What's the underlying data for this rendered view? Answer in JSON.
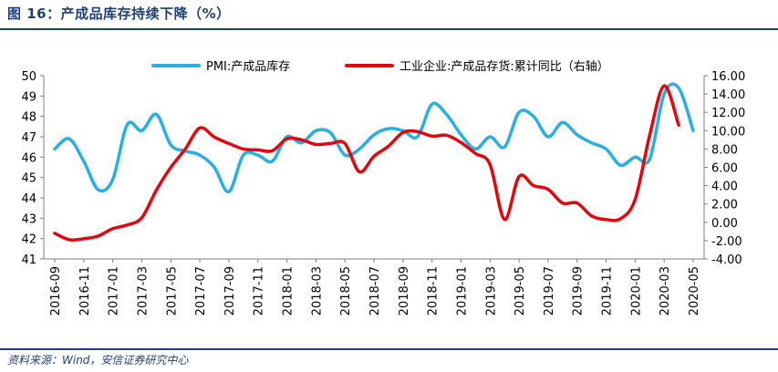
{
  "figure_title": "图 16：产成品库存持续下降（%）",
  "source": "资料来源：Wind，安信证券研究中心",
  "colors": {
    "pmi": "#2aaee3",
    "industrial": "#e2070f",
    "accent": "#1f3f77"
  },
  "chart_data": {
    "type": "line",
    "title": "",
    "x_tick_labels": [
      "2016-09",
      "2016-11",
      "2017-01",
      "2017-03",
      "2017-05",
      "2017-07",
      "2017-09",
      "2017-11",
      "2018-01",
      "2018-03",
      "2018-05",
      "2018-07",
      "2018-09",
      "2018-11",
      "2019-01",
      "2019-03",
      "2019-05",
      "2019-07",
      "2019-09",
      "2019-11",
      "2020-01",
      "2020-03",
      "2020-05"
    ],
    "y_left": {
      "min": 41,
      "max": 50,
      "ticks": [
        "41",
        "42",
        "43",
        "44",
        "45",
        "46",
        "47",
        "48",
        "49",
        "50"
      ]
    },
    "y_right": {
      "min": -4,
      "max": 16,
      "ticks": [
        "-4.00",
        "-2.00",
        "0.00",
        "2.00",
        "4.00",
        "6.00",
        "8.00",
        "10.00",
        "12.00",
        "14.00",
        "16.00"
      ]
    },
    "legend_position": "top",
    "series": [
      {
        "name": "PMI:产成品库存",
        "axis": "left",
        "x": [
          "2016-09",
          "2016-10",
          "2016-11",
          "2016-12",
          "2017-01",
          "2017-02",
          "2017-03",
          "2017-04",
          "2017-05",
          "2017-06",
          "2017-07",
          "2017-08",
          "2017-09",
          "2017-10",
          "2017-11",
          "2017-12",
          "2018-01",
          "2018-02",
          "2018-03",
          "2018-04",
          "2018-05",
          "2018-06",
          "2018-07",
          "2018-08",
          "2018-09",
          "2018-10",
          "2018-11",
          "2018-12",
          "2019-01",
          "2019-02",
          "2019-03",
          "2019-04",
          "2019-05",
          "2019-06",
          "2019-07",
          "2019-08",
          "2019-09",
          "2019-10",
          "2019-11",
          "2019-12",
          "2020-01",
          "2020-02",
          "2020-03",
          "2020-04",
          "2020-05"
        ],
        "values": [
          46.4,
          46.9,
          45.8,
          44.4,
          44.9,
          47.6,
          47.3,
          48.1,
          46.6,
          46.3,
          46.1,
          45.5,
          44.3,
          46.1,
          46.1,
          45.8,
          47.0,
          46.7,
          47.3,
          47.2,
          46.1,
          46.4,
          47.1,
          47.4,
          47.3,
          47.0,
          48.6,
          48.1,
          47.1,
          46.4,
          47.0,
          46.5,
          48.2,
          48.0,
          47.0,
          47.7,
          47.1,
          46.7,
          46.4,
          45.6,
          46.0,
          45.9,
          49.1,
          49.4,
          47.3
        ]
      },
      {
        "name": "工业企业:产成品存货:累计同比（右轴）",
        "axis": "right",
        "x": [
          "2016-09",
          "2016-10",
          "2016-11",
          "2016-12",
          "2017-01",
          "2017-02",
          "2017-03",
          "2017-04",
          "2017-05",
          "2017-06",
          "2017-07",
          "2017-08",
          "2017-09",
          "2017-10",
          "2017-11",
          "2017-12",
          "2018-01",
          "2018-02",
          "2018-03",
          "2018-04",
          "2018-05",
          "2018-06",
          "2018-07",
          "2018-08",
          "2018-09",
          "2018-10",
          "2018-11",
          "2018-12",
          "2019-01",
          "2019-02",
          "2019-03",
          "2019-04",
          "2019-05",
          "2019-06",
          "2019-07",
          "2019-08",
          "2019-09",
          "2019-10",
          "2019-11",
          "2019-12",
          "2020-01",
          "2020-02",
          "2020-03",
          "2020-04"
        ],
        "values": [
          -1.2,
          -1.9,
          -1.8,
          -1.5,
          -0.7,
          -0.3,
          0.5,
          3.5,
          6.0,
          8.0,
          10.3,
          9.3,
          8.6,
          8.0,
          7.9,
          7.8,
          9.1,
          9.0,
          8.5,
          8.6,
          8.6,
          5.5,
          7.2,
          8.3,
          9.8,
          9.9,
          9.4,
          9.5,
          8.7,
          7.5,
          6.3,
          0.3,
          5.0,
          4.0,
          3.6,
          2.1,
          2.1,
          0.7,
          0.3,
          0.4,
          2.5,
          9.5,
          14.9,
          10.6
        ]
      }
    ]
  }
}
